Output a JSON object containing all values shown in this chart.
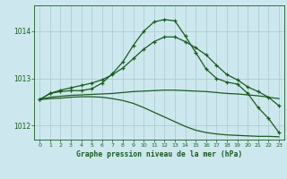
{
  "bg_color": "#cce8ee",
  "grid_color": "#aac8d0",
  "line_color": "#1a5c1a",
  "title": "Graphe pression niveau de la mer (hPa)",
  "xlim": [
    -0.5,
    23.5
  ],
  "ylim": [
    1011.7,
    1014.55
  ],
  "yticks": [
    1012,
    1013,
    1014
  ],
  "xticks": [
    0,
    1,
    2,
    3,
    4,
    5,
    6,
    7,
    8,
    9,
    10,
    11,
    12,
    13,
    14,
    15,
    16,
    17,
    18,
    19,
    20,
    21,
    22,
    23
  ],
  "series1_x": [
    0,
    1,
    2,
    3,
    4,
    5,
    6,
    7,
    8,
    9,
    10,
    11,
    12,
    13,
    14,
    15,
    16,
    17,
    18,
    19,
    20,
    21,
    22,
    23
  ],
  "series1_y": [
    1012.55,
    1012.68,
    1012.72,
    1012.74,
    1012.74,
    1012.78,
    1012.9,
    1013.1,
    1013.35,
    1013.7,
    1014.0,
    1014.2,
    1014.25,
    1014.22,
    1013.9,
    1013.55,
    1013.2,
    1013.0,
    1012.92,
    1012.88,
    1012.68,
    1012.38,
    1012.15,
    1011.85
  ],
  "series2_x": [
    0,
    1,
    2,
    3,
    4,
    5,
    6,
    7,
    8,
    9,
    10,
    11,
    12,
    13,
    14,
    15,
    16,
    17,
    18,
    19,
    20,
    21,
    22,
    23
  ],
  "series2_y": [
    1012.55,
    1012.68,
    1012.75,
    1012.8,
    1012.85,
    1012.9,
    1012.97,
    1013.08,
    1013.22,
    1013.42,
    1013.62,
    1013.78,
    1013.88,
    1013.88,
    1013.78,
    1013.65,
    1013.5,
    1013.28,
    1013.08,
    1012.97,
    1012.82,
    1012.72,
    1012.6,
    1012.42
  ],
  "series3_x": [
    0,
    1,
    2,
    3,
    4,
    5,
    6,
    7,
    8,
    9,
    10,
    11,
    12,
    13,
    14,
    15,
    16,
    17,
    18,
    19,
    20,
    21,
    22,
    23
  ],
  "series3_y": [
    1012.55,
    1012.6,
    1012.62,
    1012.64,
    1012.65,
    1012.66,
    1012.67,
    1012.68,
    1012.7,
    1012.72,
    1012.73,
    1012.74,
    1012.75,
    1012.75,
    1012.74,
    1012.73,
    1012.72,
    1012.7,
    1012.68,
    1012.67,
    1012.65,
    1012.63,
    1012.6,
    1012.57
  ],
  "series4_x": [
    0,
    1,
    2,
    3,
    4,
    5,
    6,
    7,
    8,
    9,
    10,
    11,
    12,
    13,
    14,
    15,
    16,
    17,
    18,
    19,
    20,
    21,
    22,
    23
  ],
  "series4_y": [
    1012.55,
    1012.57,
    1012.58,
    1012.6,
    1012.61,
    1012.61,
    1012.6,
    1012.57,
    1012.53,
    1012.47,
    1012.38,
    1012.28,
    1012.18,
    1012.08,
    1011.98,
    1011.9,
    1011.85,
    1011.82,
    1011.8,
    1011.79,
    1011.78,
    1011.77,
    1011.77,
    1011.76
  ]
}
